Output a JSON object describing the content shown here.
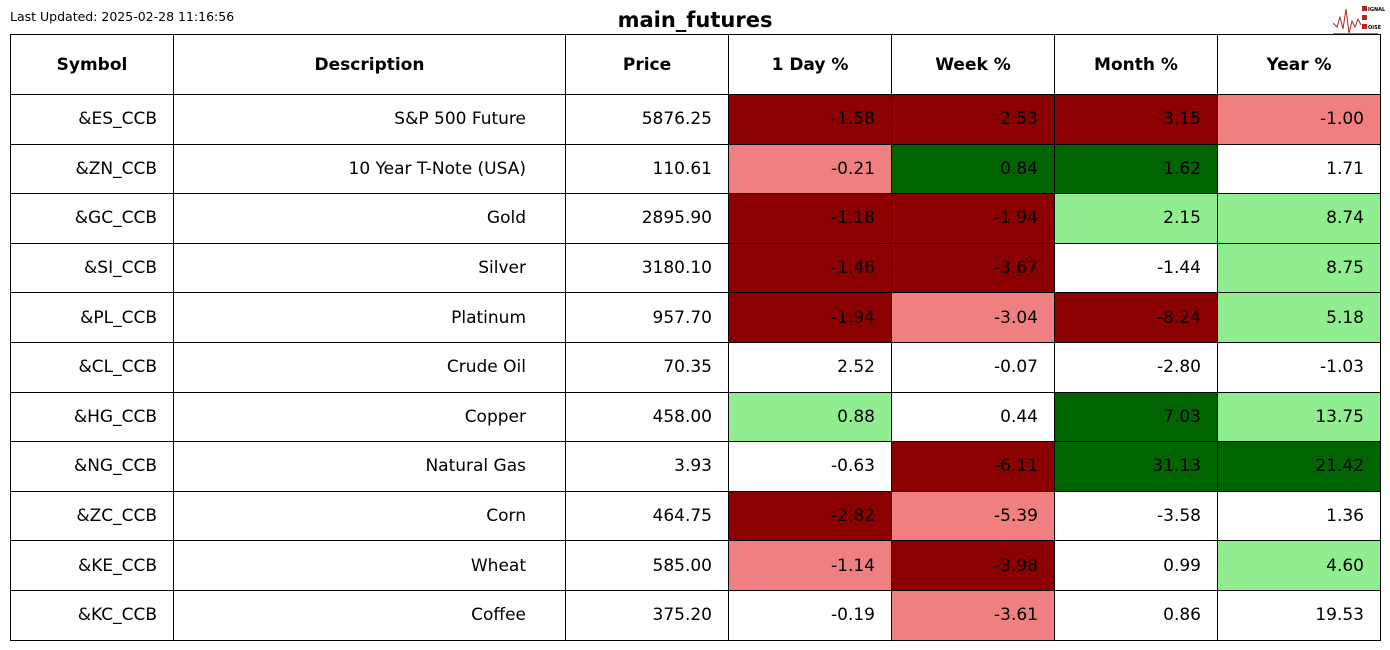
{
  "header": {
    "last_updated": "Last Updated: 2025-02-28 11:16:56",
    "title": "main_futures",
    "logo_text": "SIGNAL 2 NOISE"
  },
  "colors": {
    "dr": "#8b0000",
    "lc": "#f08080",
    "dg": "#006400",
    "lg": "#90ee90",
    "w": "#ffffff"
  },
  "chart_data": {
    "type": "table",
    "columns": [
      "Symbol",
      "Description",
      "Price",
      "1 Day %",
      "Week %",
      "Month %",
      "Year %"
    ],
    "rows": [
      {
        "cells": [
          "&ES_CCB",
          "S&P 500 Future",
          "5876.25",
          "-1.58",
          "-2.53",
          "-3.15",
          "-1.00"
        ],
        "colors": [
          "dr",
          "dr",
          "dr",
          "lc"
        ]
      },
      {
        "cells": [
          "&ZN_CCB",
          "10 Year T-Note (USA)",
          "110.61",
          "-0.21",
          "0.84",
          "1.62",
          "1.71"
        ],
        "colors": [
          "lc",
          "dg",
          "dg",
          "w"
        ]
      },
      {
        "cells": [
          "&GC_CCB",
          "Gold",
          "2895.90",
          "-1.18",
          "-1.94",
          "2.15",
          "8.74"
        ],
        "colors": [
          "dr",
          "dr",
          "lg",
          "lg"
        ]
      },
      {
        "cells": [
          "&SI_CCB",
          "Silver",
          "3180.10",
          "-1.46",
          "-3.67",
          "-1.44",
          "8.75"
        ],
        "colors": [
          "dr",
          "dr",
          "w",
          "lg"
        ]
      },
      {
        "cells": [
          "&PL_CCB",
          "Platinum",
          "957.70",
          "-1.94",
          "-3.04",
          "-8.24",
          "5.18"
        ],
        "colors": [
          "dr",
          "lc",
          "dr",
          "lg"
        ]
      },
      {
        "cells": [
          "&CL_CCB",
          "Crude Oil",
          "70.35",
          "2.52",
          "-0.07",
          "-2.80",
          "-1.03"
        ],
        "colors": [
          "w",
          "w",
          "w",
          "w"
        ]
      },
      {
        "cells": [
          "&HG_CCB",
          "Copper",
          "458.00",
          "0.88",
          "0.44",
          "7.03",
          "13.75"
        ],
        "colors": [
          "lg",
          "w",
          "dg",
          "lg"
        ]
      },
      {
        "cells": [
          "&NG_CCB",
          "Natural Gas",
          "3.93",
          "-0.63",
          "-6.11",
          "31.13",
          "21.42"
        ],
        "colors": [
          "w",
          "dr",
          "dg",
          "dg"
        ]
      },
      {
        "cells": [
          "&ZC_CCB",
          "Corn",
          "464.75",
          "-2.82",
          "-5.39",
          "-3.58",
          "1.36"
        ],
        "colors": [
          "dr",
          "lc",
          "w",
          "w"
        ]
      },
      {
        "cells": [
          "&KE_CCB",
          "Wheat",
          "585.00",
          "-1.14",
          "-3.98",
          "0.99",
          "4.60"
        ],
        "colors": [
          "lc",
          "dr",
          "w",
          "lg"
        ]
      },
      {
        "cells": [
          "&KC_CCB",
          "Coffee",
          "375.20",
          "-0.19",
          "-3.61",
          "0.86",
          "19.53"
        ],
        "colors": [
          "w",
          "lc",
          "w",
          "w"
        ]
      }
    ]
  }
}
